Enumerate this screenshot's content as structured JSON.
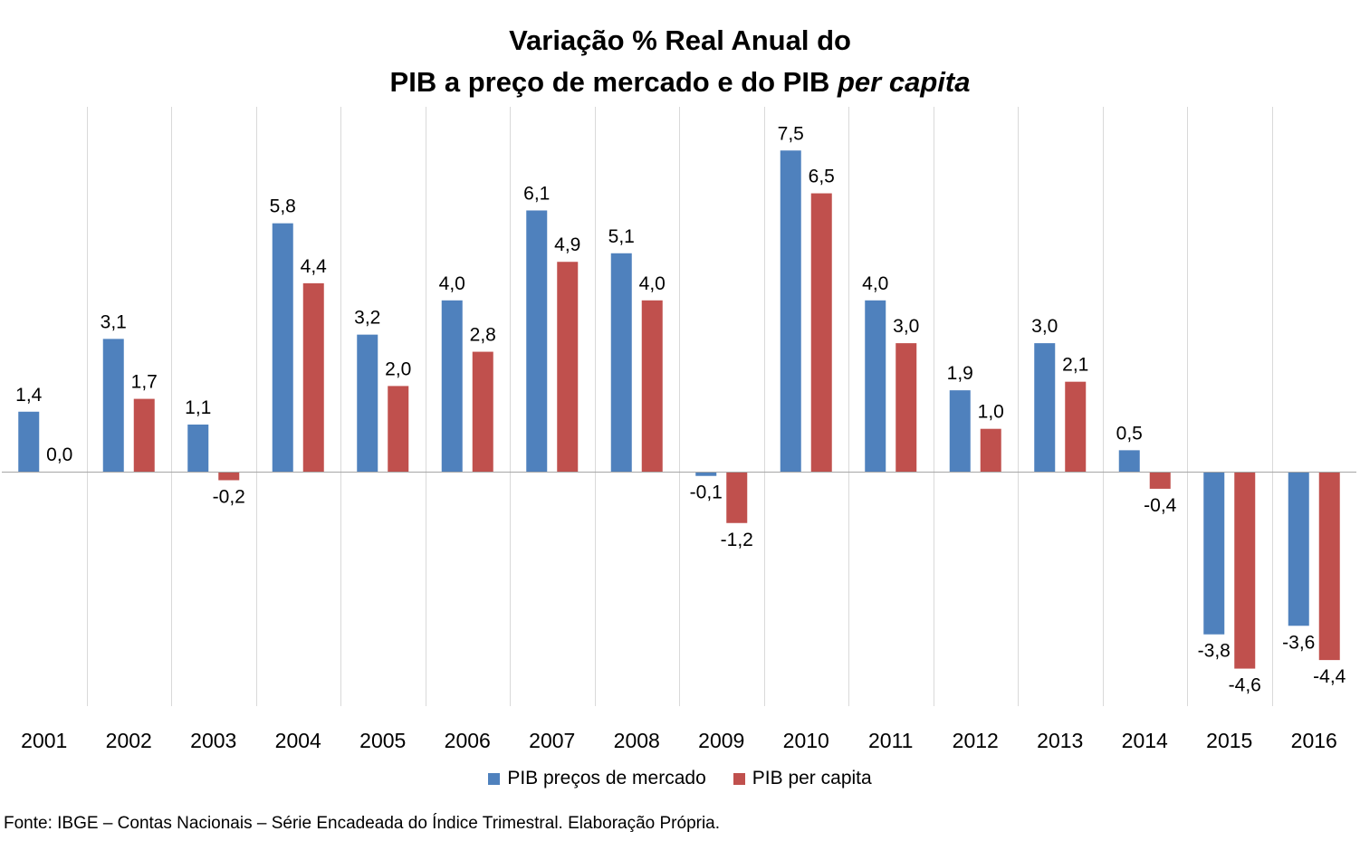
{
  "title": {
    "line1": "Variação % Real Anual do",
    "line2_main": "PIB a preço de mercado e do PIB",
    "line2_italic": "per capita"
  },
  "chart_data": {
    "type": "bar",
    "categories": [
      "2001",
      "2002",
      "2003",
      "2004",
      "2005",
      "2006",
      "2007",
      "2008",
      "2009",
      "2010",
      "2011",
      "2012",
      "2013",
      "2014",
      "2015",
      "2016"
    ],
    "series": [
      {
        "name": "PIB preços de mercado",
        "color": "#4f81bd",
        "values": [
          1.4,
          3.1,
          1.1,
          5.8,
          3.2,
          4.0,
          6.1,
          5.1,
          -0.1,
          7.5,
          4.0,
          1.9,
          3.0,
          0.5,
          -3.8,
          -3.6
        ],
        "labels": [
          "1,4",
          "3,1",
          "1,1",
          "5,8",
          "3,2",
          "4,0",
          "6,1",
          "5,1",
          "-0,1",
          "7,5",
          "4,0",
          "1,9",
          "3,0",
          "0,5",
          "-3,8",
          "-3,6"
        ]
      },
      {
        "name": "PIB per capita",
        "color": "#c0504d",
        "values": [
          0.0,
          1.7,
          -0.2,
          4.4,
          2.0,
          2.8,
          4.9,
          4.0,
          -1.2,
          6.5,
          3.0,
          1.0,
          2.1,
          -0.4,
          -4.6,
          -4.4
        ],
        "labels": [
          "0,0",
          "1,7",
          "-0,2",
          "4,4",
          "2,0",
          "2,8",
          "4,9",
          "4,0",
          "-1,2",
          "6,5",
          "3,0",
          "1,0",
          "2,1",
          "-0,4",
          "-4,6",
          "-4,4"
        ]
      }
    ],
    "grid": "vertical category separators",
    "legend_position": "bottom"
  },
  "legend": {
    "series1_label": "PIB preços de mercado",
    "series2_label": "PIB per capita"
  },
  "source": "Fonte: IBGE – Contas Nacionais – Série Encadeada do Índice Trimestral. Elaboração Própria."
}
